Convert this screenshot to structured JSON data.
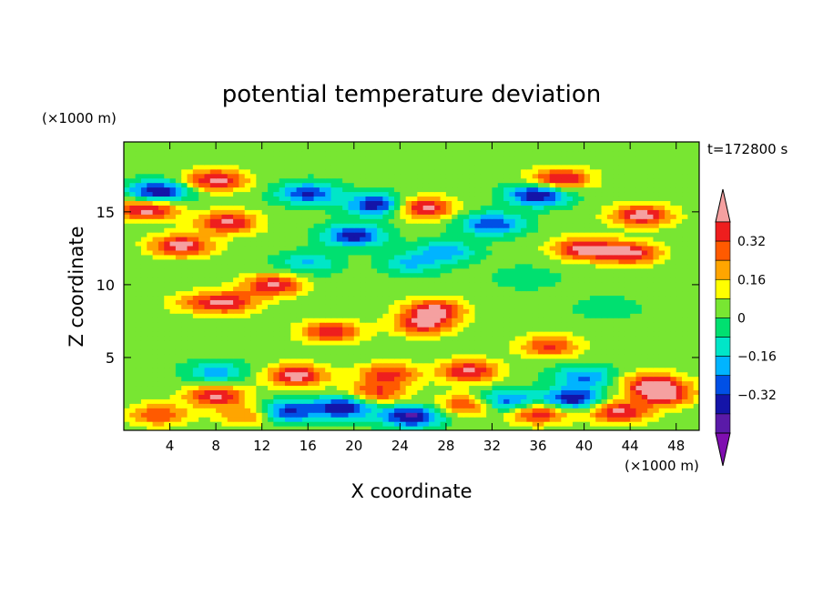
{
  "chart_data": {
    "type": "heatmap",
    "title": "potential temperature deviation",
    "time_label": "t=172800 s",
    "xlabel": "X coordinate",
    "ylabel": "Z coordinate",
    "x_unit": "(×1000 m)",
    "y_unit": "(×1000 m)",
    "xlim": [
      0,
      50
    ],
    "ylim": [
      0,
      19.8
    ],
    "x_ticks": [
      4,
      8,
      12,
      16,
      20,
      24,
      28,
      32,
      36,
      40,
      44,
      48
    ],
    "y_ticks": [
      5,
      10,
      15
    ],
    "colorbar": {
      "levels": [
        -0.48,
        -0.4,
        -0.32,
        -0.24,
        -0.16,
        -0.08,
        0,
        0.08,
        0.16,
        0.24,
        0.32,
        0.4
      ],
      "tick_values": [
        0.32,
        0.16,
        0,
        -0.16,
        -0.32
      ],
      "tick_labels": [
        "0.32",
        "0.16",
        "0",
        "−0.16",
        "−0.32"
      ],
      "colors": [
        "#7f0eb0",
        "#5a1aa8",
        "#1414a8",
        "#0050e6",
        "#00b4ff",
        "#00e6c8",
        "#00e070",
        "#78e632",
        "#ffff00",
        "#ffa500",
        "#ff5a00",
        "#ee1e1e",
        "#f5a0a0"
      ],
      "extend": "both"
    },
    "features": [
      {
        "x": 3,
        "z": 16.4,
        "value": -0.45
      },
      {
        "x": 8,
        "z": 17.2,
        "value": 0.41
      },
      {
        "x": 16,
        "z": 16.3,
        "value": -0.36
      },
      {
        "x": 22,
        "z": 15.5,
        "value": -0.42
      },
      {
        "x": 38,
        "z": 17.3,
        "value": 0.4
      },
      {
        "x": 36,
        "z": 16.2,
        "value": -0.44
      },
      {
        "x": 2,
        "z": 15.2,
        "value": 0.42
      },
      {
        "x": 9,
        "z": 14.3,
        "value": 0.4
      },
      {
        "x": 26,
        "z": 15.3,
        "value": 0.42
      },
      {
        "x": 45,
        "z": 14.8,
        "value": 0.42
      },
      {
        "x": 20,
        "z": 13.4,
        "value": -0.4
      },
      {
        "x": 32,
        "z": 14.2,
        "value": -0.36
      },
      {
        "x": 5,
        "z": 12.7,
        "value": 0.42
      },
      {
        "x": 40,
        "z": 12.5,
        "value": 0.42
      },
      {
        "x": 44,
        "z": 12.2,
        "value": 0.4
      },
      {
        "x": 28,
        "z": 12.3,
        "value": -0.24
      },
      {
        "x": 25,
        "z": 11.5,
        "value": -0.2
      },
      {
        "x": 16,
        "z": 11.5,
        "value": -0.2
      },
      {
        "x": 35,
        "z": 10.5,
        "value": -0.1
      },
      {
        "x": 13,
        "z": 10.0,
        "value": 0.38
      },
      {
        "x": 9,
        "z": 8.8,
        "value": 0.36
      },
      {
        "x": 27,
        "z": 8.3,
        "value": 0.38
      },
      {
        "x": 26,
        "z": 7.3,
        "value": 0.36
      },
      {
        "x": 18,
        "z": 6.8,
        "value": 0.36
      },
      {
        "x": 37,
        "z": 5.8,
        "value": 0.3
      },
      {
        "x": 6,
        "z": 8.8,
        "value": 0.14
      },
      {
        "x": 42,
        "z": 8.4,
        "value": -0.1
      },
      {
        "x": 8,
        "z": 4.0,
        "value": -0.24
      },
      {
        "x": 15,
        "z": 3.8,
        "value": 0.42
      },
      {
        "x": 23,
        "z": 3.9,
        "value": 0.32
      },
      {
        "x": 30,
        "z": 4.1,
        "value": 0.4
      },
      {
        "x": 40,
        "z": 3.7,
        "value": -0.28
      },
      {
        "x": 46,
        "z": 3.2,
        "value": 0.42
      },
      {
        "x": 8,
        "z": 2.4,
        "value": 0.38
      },
      {
        "x": 14,
        "z": 1.3,
        "value": -0.4
      },
      {
        "x": 19,
        "z": 1.6,
        "value": -0.44
      },
      {
        "x": 22,
        "z": 2.6,
        "value": 0.3
      },
      {
        "x": 25,
        "z": 1.0,
        "value": -0.46
      },
      {
        "x": 30,
        "z": 1.8,
        "value": 0.34
      },
      {
        "x": 33,
        "z": 2.0,
        "value": -0.38
      },
      {
        "x": 36,
        "z": 1.2,
        "value": 0.36
      },
      {
        "x": 39,
        "z": 2.2,
        "value": -0.44
      },
      {
        "x": 43,
        "z": 1.3,
        "value": 0.4
      },
      {
        "x": 47,
        "z": 2.4,
        "value": 0.34
      },
      {
        "x": 3,
        "z": 1.1,
        "value": 0.28
      },
      {
        "x": 11,
        "z": 1.1,
        "value": 0.26
      }
    ]
  }
}
